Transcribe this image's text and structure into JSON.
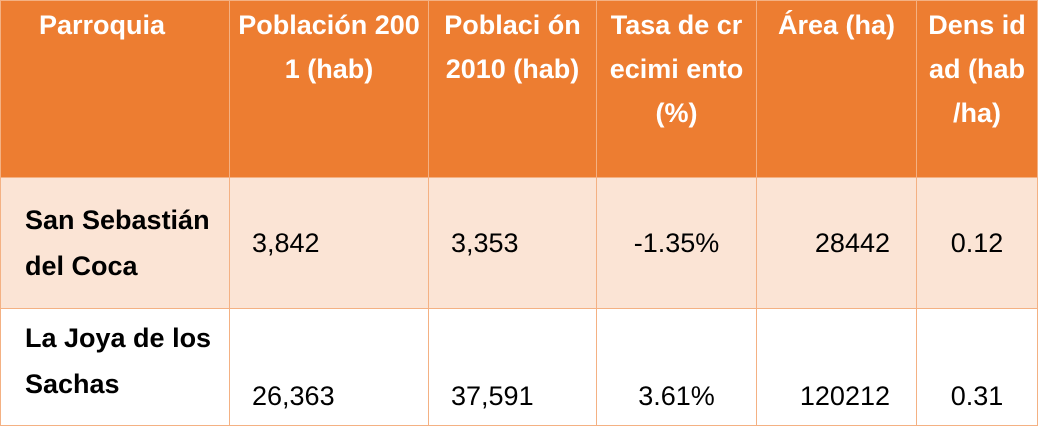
{
  "table": {
    "headers": [
      "Parroquia",
      "Población 2001 (hab)",
      "Poblaci ón 2010 (hab)",
      "Tasa de crecimi ento (%)",
      "Área (ha)",
      "Dens idad (hab /ha)"
    ],
    "rows": [
      {
        "parroquia": "San Sebastián del Coca",
        "poblacion_2001": "3,842",
        "poblacion_2010": "3,353",
        "tasa_crecimiento": "-1.35%",
        "area": "28442",
        "densidad": "0.12"
      },
      {
        "parroquia": "La Joya de los Sachas",
        "poblacion_2001": "26,363",
        "poblacion_2010": "37,591",
        "tasa_crecimiento": "3.61%",
        "area": "120212",
        "densidad": "0.31"
      }
    ]
  },
  "colors": {
    "header_bg": "#ed7d31",
    "header_text": "#ffffff",
    "row_band": "#fbe4d5",
    "border": "#f4b183"
  }
}
